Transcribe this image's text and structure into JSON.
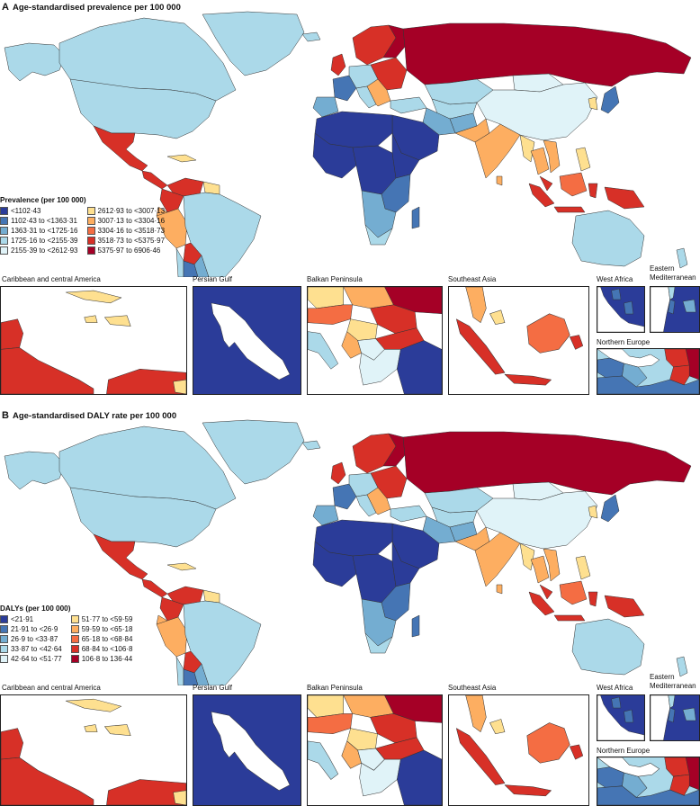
{
  "colors": {
    "scale": [
      "#2b3c99",
      "#4575b4",
      "#74add1",
      "#abd9e9",
      "#e0f3f8",
      "#fee090",
      "#fdae61",
      "#f46d43",
      "#d73027",
      "#a50026"
    ],
    "border": "#333333",
    "water": "#ffffff"
  },
  "panels": [
    {
      "id": "A",
      "letter": "A",
      "title": "Age-standardised prevalence per 100 000",
      "legend_title": "Prevalence (per 100 000)",
      "legend_items": [
        {
          "label": "<1102·43",
          "color_index": 0
        },
        {
          "label": "1102·43 to <1363·31",
          "color_index": 1
        },
        {
          "label": "1363·31 to <1725·16",
          "color_index": 2
        },
        {
          "label": "1725·16 to <2155·39",
          "color_index": 3
        },
        {
          "label": "2155·39 to <2612·93",
          "color_index": 4
        },
        {
          "label": "2612·93 to <3007·13",
          "color_index": 5
        },
        {
          "label": "3007·13 to <3304·16",
          "color_index": 6
        },
        {
          "label": "3304·16 to <3518·73",
          "color_index": 7
        },
        {
          "label": "3518·73 to <5375·97",
          "color_index": 8
        },
        {
          "label": "5375·97 to 6906·46",
          "color_index": 9
        }
      ],
      "insets": {
        "caribbean": "Caribbean and central America",
        "persian_gulf": "Persian Gulf",
        "balkan": "Balkan Peninsula",
        "southeast_asia": "Southeast Asia",
        "west_africa": "West Africa",
        "eastern_med": "Eastern Mediterranean",
        "northern_europe": "Northern Europe"
      }
    },
    {
      "id": "B",
      "letter": "B",
      "title": "Age-standardised DALY rate per 100 000",
      "legend_title": "DALYs (per 100 000)",
      "legend_items": [
        {
          "label": "<21·91",
          "color_index": 0
        },
        {
          "label": "21·91 to <26·9",
          "color_index": 1
        },
        {
          "label": "26·9 to <33·87",
          "color_index": 2
        },
        {
          "label": "33·87 to <42·64",
          "color_index": 3
        },
        {
          "label": "42·64 to <51·77",
          "color_index": 4
        },
        {
          "label": "51·77 to <59·59",
          "color_index": 5
        },
        {
          "label": "59·59 to <65·18",
          "color_index": 6
        },
        {
          "label": "65·18 to <68·84",
          "color_index": 7
        },
        {
          "label": "68·84 to <106·8",
          "color_index": 8
        },
        {
          "label": "106·8 to 136·44",
          "color_index": 9
        }
      ],
      "insets": {
        "caribbean": "Caribbean and central America",
        "persian_gulf": "Persian Gulf",
        "balkan": "Balkan Peninsula",
        "southeast_asia": "Southeast Asia",
        "west_africa": "West Africa",
        "eastern_med": "Eastern Mediterranean",
        "northern_europe": "Northern Europe"
      }
    }
  ]
}
